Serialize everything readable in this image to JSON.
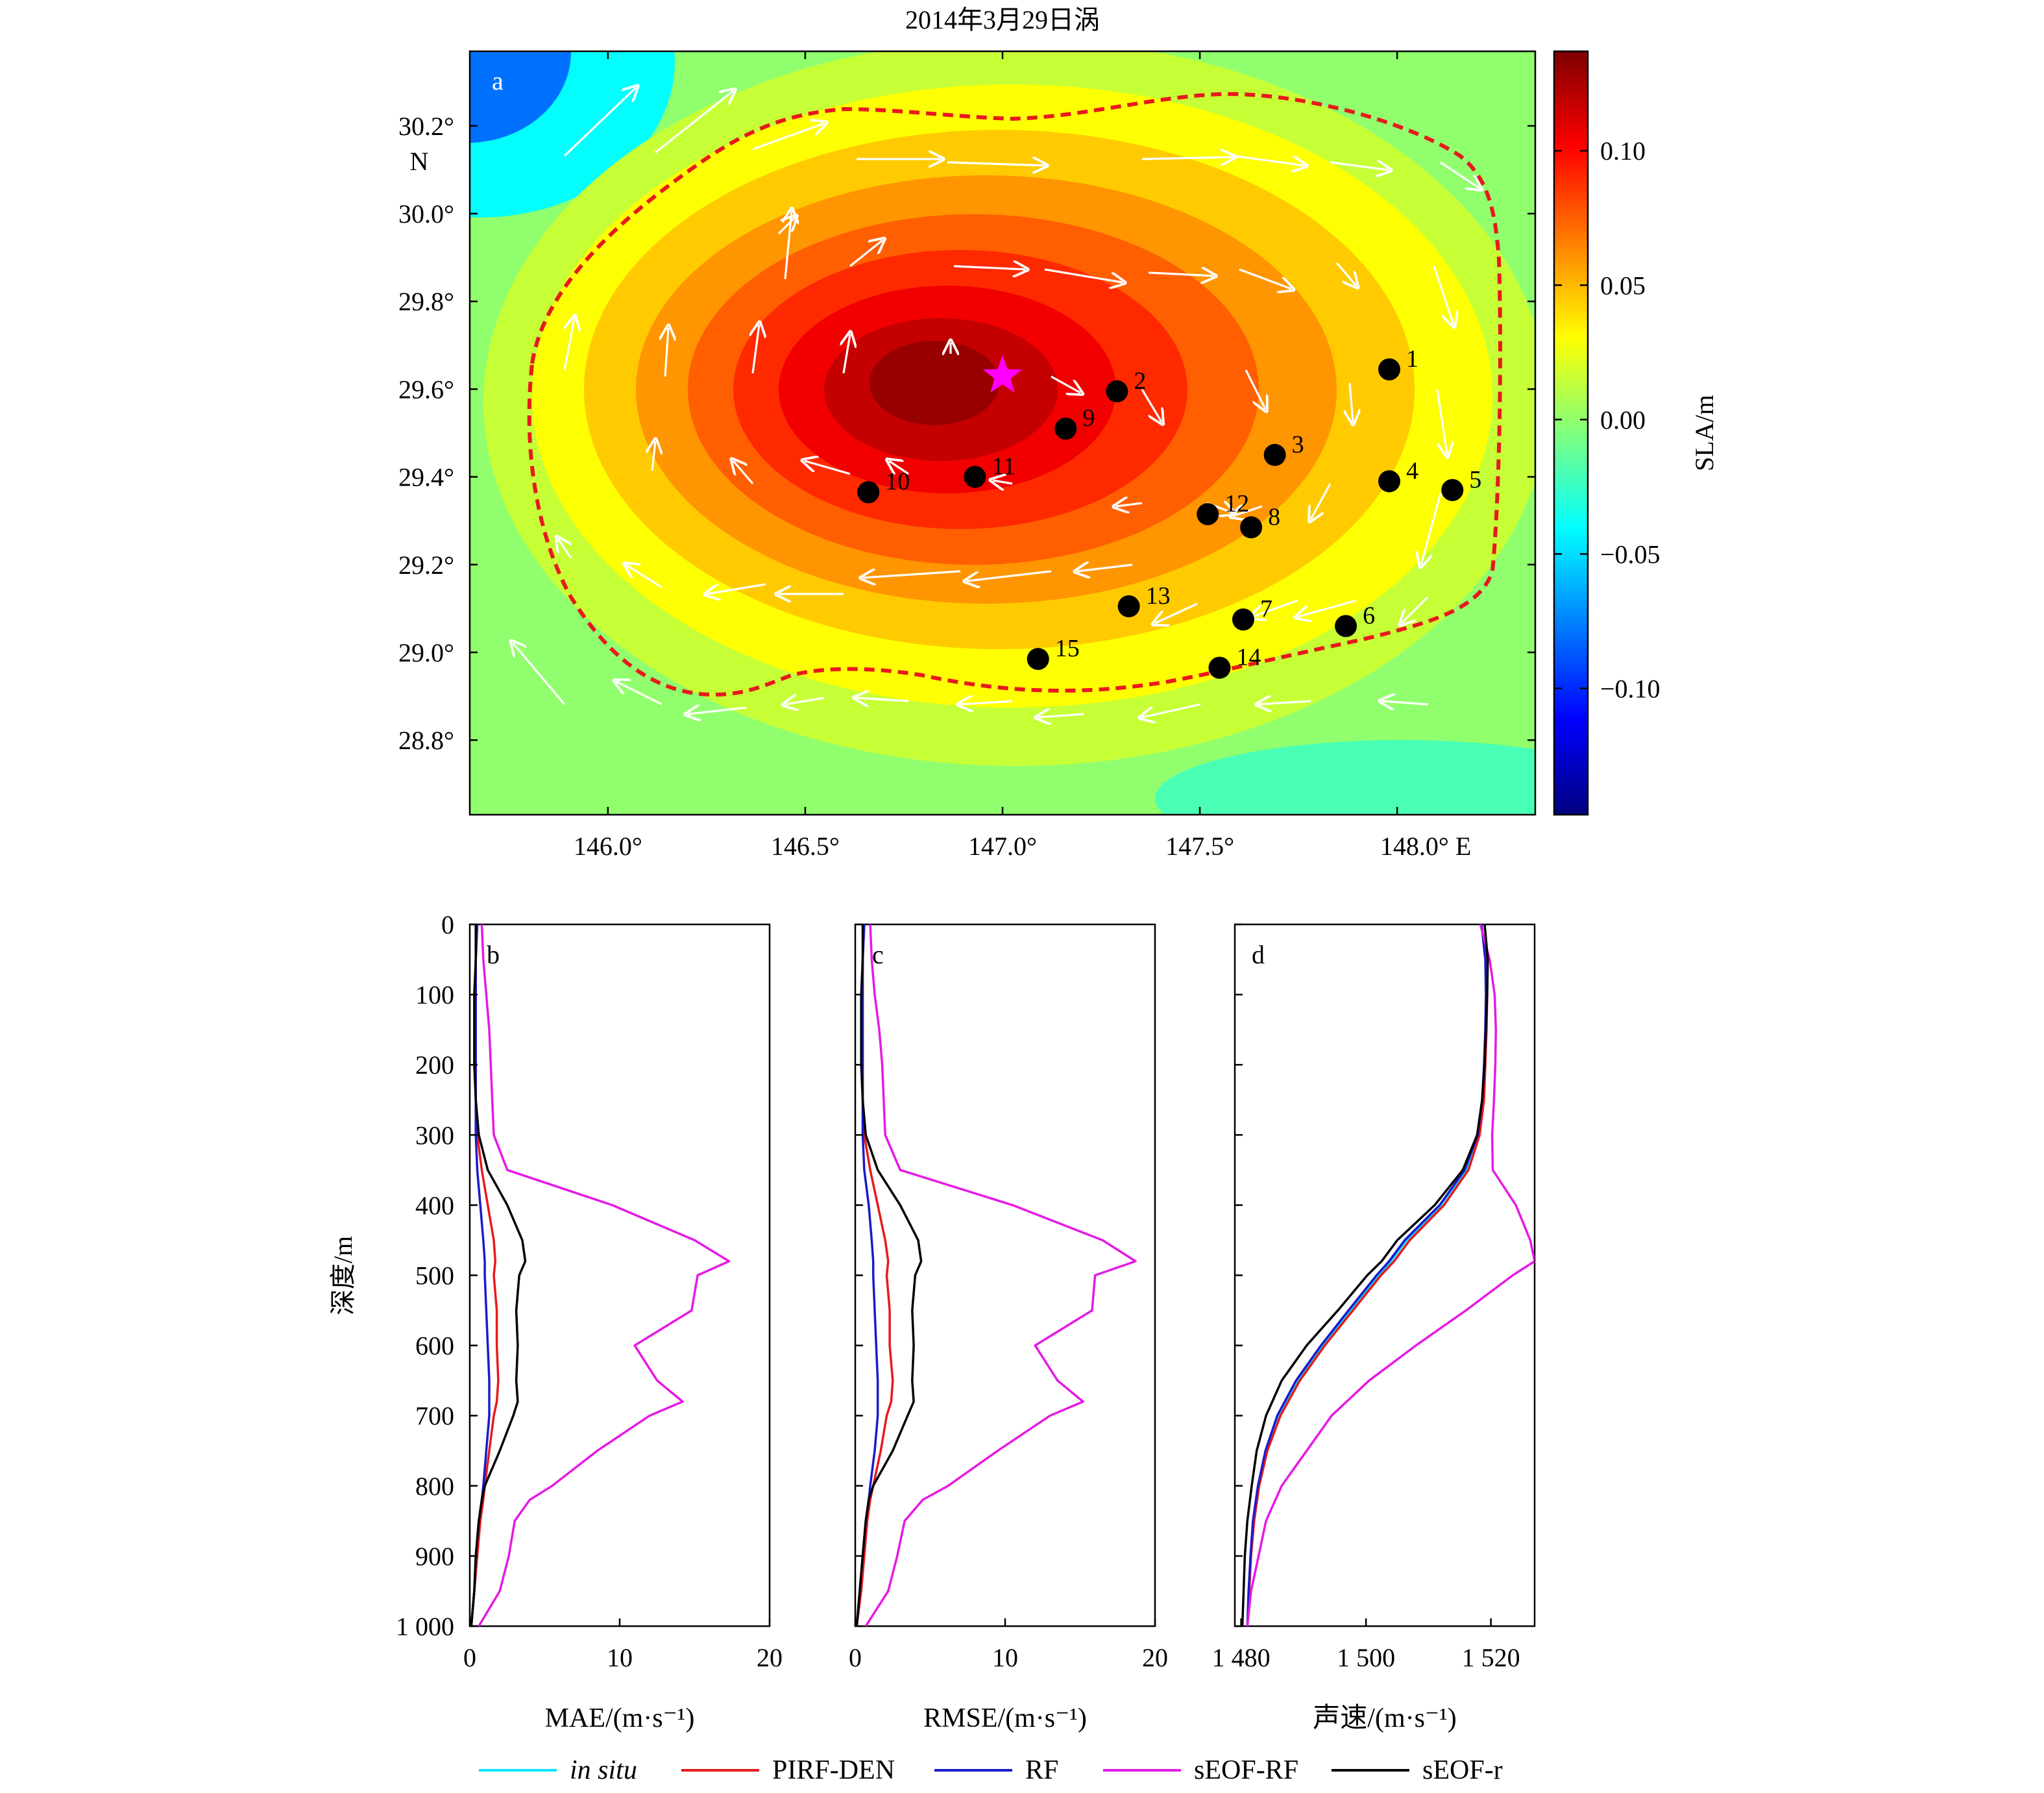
{
  "title": "2014年3月29日涡",
  "colors": {
    "insitu": "#00e5ff",
    "pirf": "#e8191c",
    "rf": "#1a1acc",
    "seofrf": "#e619e6",
    "seofr": "#000000",
    "star": "#ff00ff",
    "contour": "#e8191c",
    "arrow": "#ffffff",
    "colormap": [
      "#00007f",
      "#0000ff",
      "#007fff",
      "#00ffff",
      "#7fff7f",
      "#ffff00",
      "#ff7f00",
      "#ff0000",
      "#7f0000"
    ]
  },
  "chart_data": [
    {
      "type": "heatmap",
      "panel": "a",
      "xlim": [
        145.65,
        148.35
      ],
      "ylim": [
        28.63,
        30.37
      ],
      "xticks": [
        146.0,
        146.5,
        147.0,
        147.5,
        148.0
      ],
      "xtick_labels": [
        "146.0°",
        "146.5°",
        "147.0°",
        "147.5°",
        "148.0° E"
      ],
      "yticks": [
        28.8,
        29.0,
        29.2,
        29.4,
        29.6,
        29.8,
        30.0,
        30.2
      ],
      "ytick_labels": [
        "28.8°",
        "29.0°",
        "29.2°",
        "29.4°",
        "29.6°",
        "29.8°",
        "30.0°",
        "30.2°"
      ],
      "ylabel_unit": "N",
      "colorbar": {
        "label": "SLA/m",
        "range": [
          -0.147,
          0.137
        ],
        "ticks": [
          0.1,
          0.05,
          0.0,
          -0.05,
          -0.1
        ],
        "tick_labels": [
          "0.10",
          "0.05",
          "0.00",
          "−0.05",
          "−0.10"
        ]
      },
      "eddy_center": {
        "lon": 147.0,
        "lat": 29.63
      },
      "stations": [
        {
          "id": "1",
          "lon": 147.98,
          "lat": 29.645
        },
        {
          "id": "2",
          "lon": 147.29,
          "lat": 29.595
        },
        {
          "id": "3",
          "lon": 147.69,
          "lat": 29.45
        },
        {
          "id": "4",
          "lon": 147.98,
          "lat": 29.39
        },
        {
          "id": "5",
          "lon": 148.14,
          "lat": 29.37
        },
        {
          "id": "6",
          "lon": 147.87,
          "lat": 29.06
        },
        {
          "id": "7",
          "lon": 147.61,
          "lat": 29.075
        },
        {
          "id": "8",
          "lon": 147.63,
          "lat": 29.285
        },
        {
          "id": "9",
          "lon": 147.16,
          "lat": 29.51
        },
        {
          "id": "10",
          "lon": 146.66,
          "lat": 29.365
        },
        {
          "id": "11",
          "lon": 146.93,
          "lat": 29.4
        },
        {
          "id": "12",
          "lon": 147.52,
          "lat": 29.315
        },
        {
          "id": "13",
          "lon": 147.32,
          "lat": 29.105
        },
        {
          "id": "14",
          "lon": 147.55,
          "lat": 28.965
        },
        {
          "id": "15",
          "lon": 147.09,
          "lat": 28.985
        }
      ]
    },
    {
      "type": "line",
      "panel": "b",
      "xlabel": "MAE/(m·s⁻¹)",
      "ylabel": "深度/m",
      "xlim": [
        0,
        20
      ],
      "ylim": [
        1000,
        0
      ],
      "xticks": [
        0,
        10,
        20
      ],
      "xtick_labels": [
        "0",
        "10",
        "20"
      ],
      "yticks": [
        0,
        100,
        200,
        300,
        400,
        500,
        600,
        700,
        800,
        900,
        1000
      ],
      "ytick_labels": [
        "0",
        "100",
        "200",
        "300",
        "400",
        "500",
        "600",
        "700",
        "800",
        "900",
        "1 000"
      ],
      "depth": [
        0,
        50,
        100,
        150,
        200,
        250,
        300,
        350,
        400,
        450,
        480,
        500,
        550,
        600,
        650,
        680,
        700,
        750,
        800,
        820,
        850,
        900,
        950,
        1000
      ],
      "series": [
        {
          "name": "PIRF-DEN",
          "key": "pirf",
          "values": [
            0.5,
            0.4,
            0.4,
            0.4,
            0.4,
            0.4,
            0.5,
            0.8,
            1.2,
            1.6,
            1.7,
            1.6,
            1.8,
            1.8,
            1.9,
            1.8,
            1.6,
            1.3,
            1.0,
            0.9,
            0.7,
            0.5,
            0.3,
            0.1
          ]
        },
        {
          "name": "RF",
          "key": "rf",
          "values": [
            0.5,
            0.4,
            0.4,
            0.4,
            0.4,
            0.4,
            0.4,
            0.5,
            0.7,
            0.9,
            1.0,
            1.0,
            1.1,
            1.2,
            1.3,
            1.3,
            1.3,
            1.1,
            0.9,
            0.8,
            0.6,
            0.4,
            0.3,
            0.1
          ]
        },
        {
          "name": "sEOF-RF",
          "key": "seofrf",
          "values": [
            0.8,
            0.9,
            1.1,
            1.3,
            1.4,
            1.5,
            1.6,
            2.5,
            9.5,
            15.0,
            17.3,
            15.2,
            14.8,
            11.0,
            12.5,
            14.2,
            12.0,
            8.5,
            5.5,
            4.0,
            3.0,
            2.6,
            2.0,
            0.6
          ]
        },
        {
          "name": "sEOF-r",
          "key": "seofr",
          "values": [
            0.4,
            0.4,
            0.3,
            0.3,
            0.3,
            0.4,
            0.6,
            1.2,
            2.5,
            3.5,
            3.7,
            3.3,
            3.1,
            3.2,
            3.1,
            3.2,
            2.9,
            2.0,
            1.0,
            0.8,
            0.6,
            0.4,
            0.3,
            0.1
          ]
        }
      ]
    },
    {
      "type": "line",
      "panel": "c",
      "xlabel": "RMSE/(m·s⁻¹)",
      "xlim": [
        0,
        20
      ],
      "ylim": [
        1000,
        0
      ],
      "xticks": [
        0,
        10,
        20
      ],
      "xtick_labels": [
        "0",
        "10",
        "20"
      ],
      "depth": [
        0,
        50,
        100,
        150,
        200,
        250,
        300,
        350,
        400,
        450,
        480,
        500,
        550,
        600,
        650,
        680,
        700,
        750,
        800,
        820,
        850,
        900,
        950,
        1000
      ],
      "series": [
        {
          "name": "PIRF-DEN",
          "key": "pirf",
          "values": [
            0.6,
            0.5,
            0.5,
            0.5,
            0.5,
            0.5,
            0.6,
            1.0,
            1.5,
            2.0,
            2.2,
            2.1,
            2.3,
            2.3,
            2.5,
            2.4,
            2.1,
            1.7,
            1.2,
            1.0,
            0.8,
            0.6,
            0.4,
            0.1
          ]
        },
        {
          "name": "RF",
          "key": "rf",
          "values": [
            0.6,
            0.5,
            0.5,
            0.5,
            0.5,
            0.5,
            0.5,
            0.6,
            0.9,
            1.1,
            1.2,
            1.2,
            1.3,
            1.4,
            1.5,
            1.5,
            1.5,
            1.3,
            1.0,
            0.9,
            0.7,
            0.5,
            0.3,
            0.1
          ]
        },
        {
          "name": "sEOF-RF",
          "key": "seofrf",
          "values": [
            1.0,
            1.1,
            1.3,
            1.6,
            1.8,
            1.9,
            2.0,
            3.0,
            10.5,
            16.5,
            18.7,
            16.0,
            15.8,
            12.0,
            13.5,
            15.2,
            13.0,
            9.5,
            6.2,
            4.5,
            3.3,
            2.8,
            2.2,
            0.7
          ]
        },
        {
          "name": "sEOF-r",
          "key": "seofr",
          "values": [
            0.5,
            0.5,
            0.4,
            0.4,
            0.4,
            0.5,
            0.7,
            1.5,
            3.0,
            4.2,
            4.4,
            4.0,
            3.8,
            3.9,
            3.8,
            3.9,
            3.5,
            2.5,
            1.2,
            0.9,
            0.7,
            0.5,
            0.3,
            0.1
          ]
        }
      ]
    },
    {
      "type": "line",
      "panel": "d",
      "xlabel": "声速/(m·s⁻¹)",
      "xlim": [
        1479,
        1527
      ],
      "ylim": [
        1000,
        0
      ],
      "xticks": [
        1480,
        1500,
        1520
      ],
      "xtick_labels": [
        "1 480",
        "1 500",
        "1 520"
      ],
      "depth": [
        0,
        50,
        100,
        150,
        200,
        250,
        300,
        350,
        400,
        450,
        480,
        500,
        550,
        600,
        650,
        700,
        750,
        800,
        850,
        900,
        950,
        1000
      ],
      "series": [
        {
          "name": "in situ",
          "key": "insitu",
          "values": [
            1518.5,
            1519.2,
            1519.3,
            1519.2,
            1519.0,
            1518.7,
            1518.0,
            1516.0,
            1512.0,
            1506.5,
            1504.0,
            1502.0,
            1497.5,
            1493.0,
            1489.0,
            1486.0,
            1484.0,
            1482.8,
            1482.0,
            1481.6,
            1481.3,
            1481.0
          ]
        },
        {
          "name": "PIRF-DEN",
          "key": "pirf",
          "values": [
            1518.5,
            1519.2,
            1519.4,
            1519.3,
            1519.1,
            1518.9,
            1518.2,
            1516.4,
            1512.5,
            1507.0,
            1504.5,
            1502.4,
            1497.9,
            1493.4,
            1489.4,
            1486.3,
            1484.2,
            1482.9,
            1482.1,
            1481.6,
            1481.3,
            1481.0
          ]
        },
        {
          "name": "RF",
          "key": "rf",
          "values": [
            1518.5,
            1519.1,
            1519.2,
            1519.1,
            1518.9,
            1518.6,
            1517.9,
            1515.8,
            1511.8,
            1506.2,
            1503.7,
            1501.7,
            1497.2,
            1492.8,
            1488.8,
            1485.8,
            1483.9,
            1482.7,
            1481.9,
            1481.5,
            1481.2,
            1481.0
          ]
        },
        {
          "name": "sEOF-RF",
          "key": "seofrf",
          "values": [
            1518.3,
            1519.8,
            1520.6,
            1520.8,
            1520.7,
            1520.5,
            1520.2,
            1520.3,
            1524.0,
            1526.3,
            1527.0,
            1523.5,
            1516.0,
            1508.0,
            1500.5,
            1494.5,
            1490.5,
            1486.5,
            1484.0,
            1482.8,
            1481.6,
            1481.0
          ]
        },
        {
          "name": "sEOF-r",
          "key": "seofr",
          "values": [
            1519.0,
            1519.5,
            1519.4,
            1519.2,
            1519.0,
            1518.6,
            1517.8,
            1515.5,
            1511.0,
            1505.0,
            1502.5,
            1500.2,
            1495.5,
            1490.5,
            1486.5,
            1484.0,
            1482.5,
            1481.7,
            1481.0,
            1480.6,
            1480.4,
            1480.2
          ]
        }
      ]
    }
  ],
  "panel_letters": {
    "a": "a",
    "b": "b",
    "c": "c",
    "d": "d"
  },
  "legend": [
    {
      "key": "insitu",
      "label": "in situ",
      "italic": true
    },
    {
      "key": "pirf",
      "label": "PIRF-DEN",
      "italic": false
    },
    {
      "key": "rf",
      "label": "RF",
      "italic": false
    },
    {
      "key": "seofrf",
      "label": "sEOF-RF",
      "italic": false
    },
    {
      "key": "seofr",
      "label": "sEOF-r",
      "italic": false
    }
  ]
}
